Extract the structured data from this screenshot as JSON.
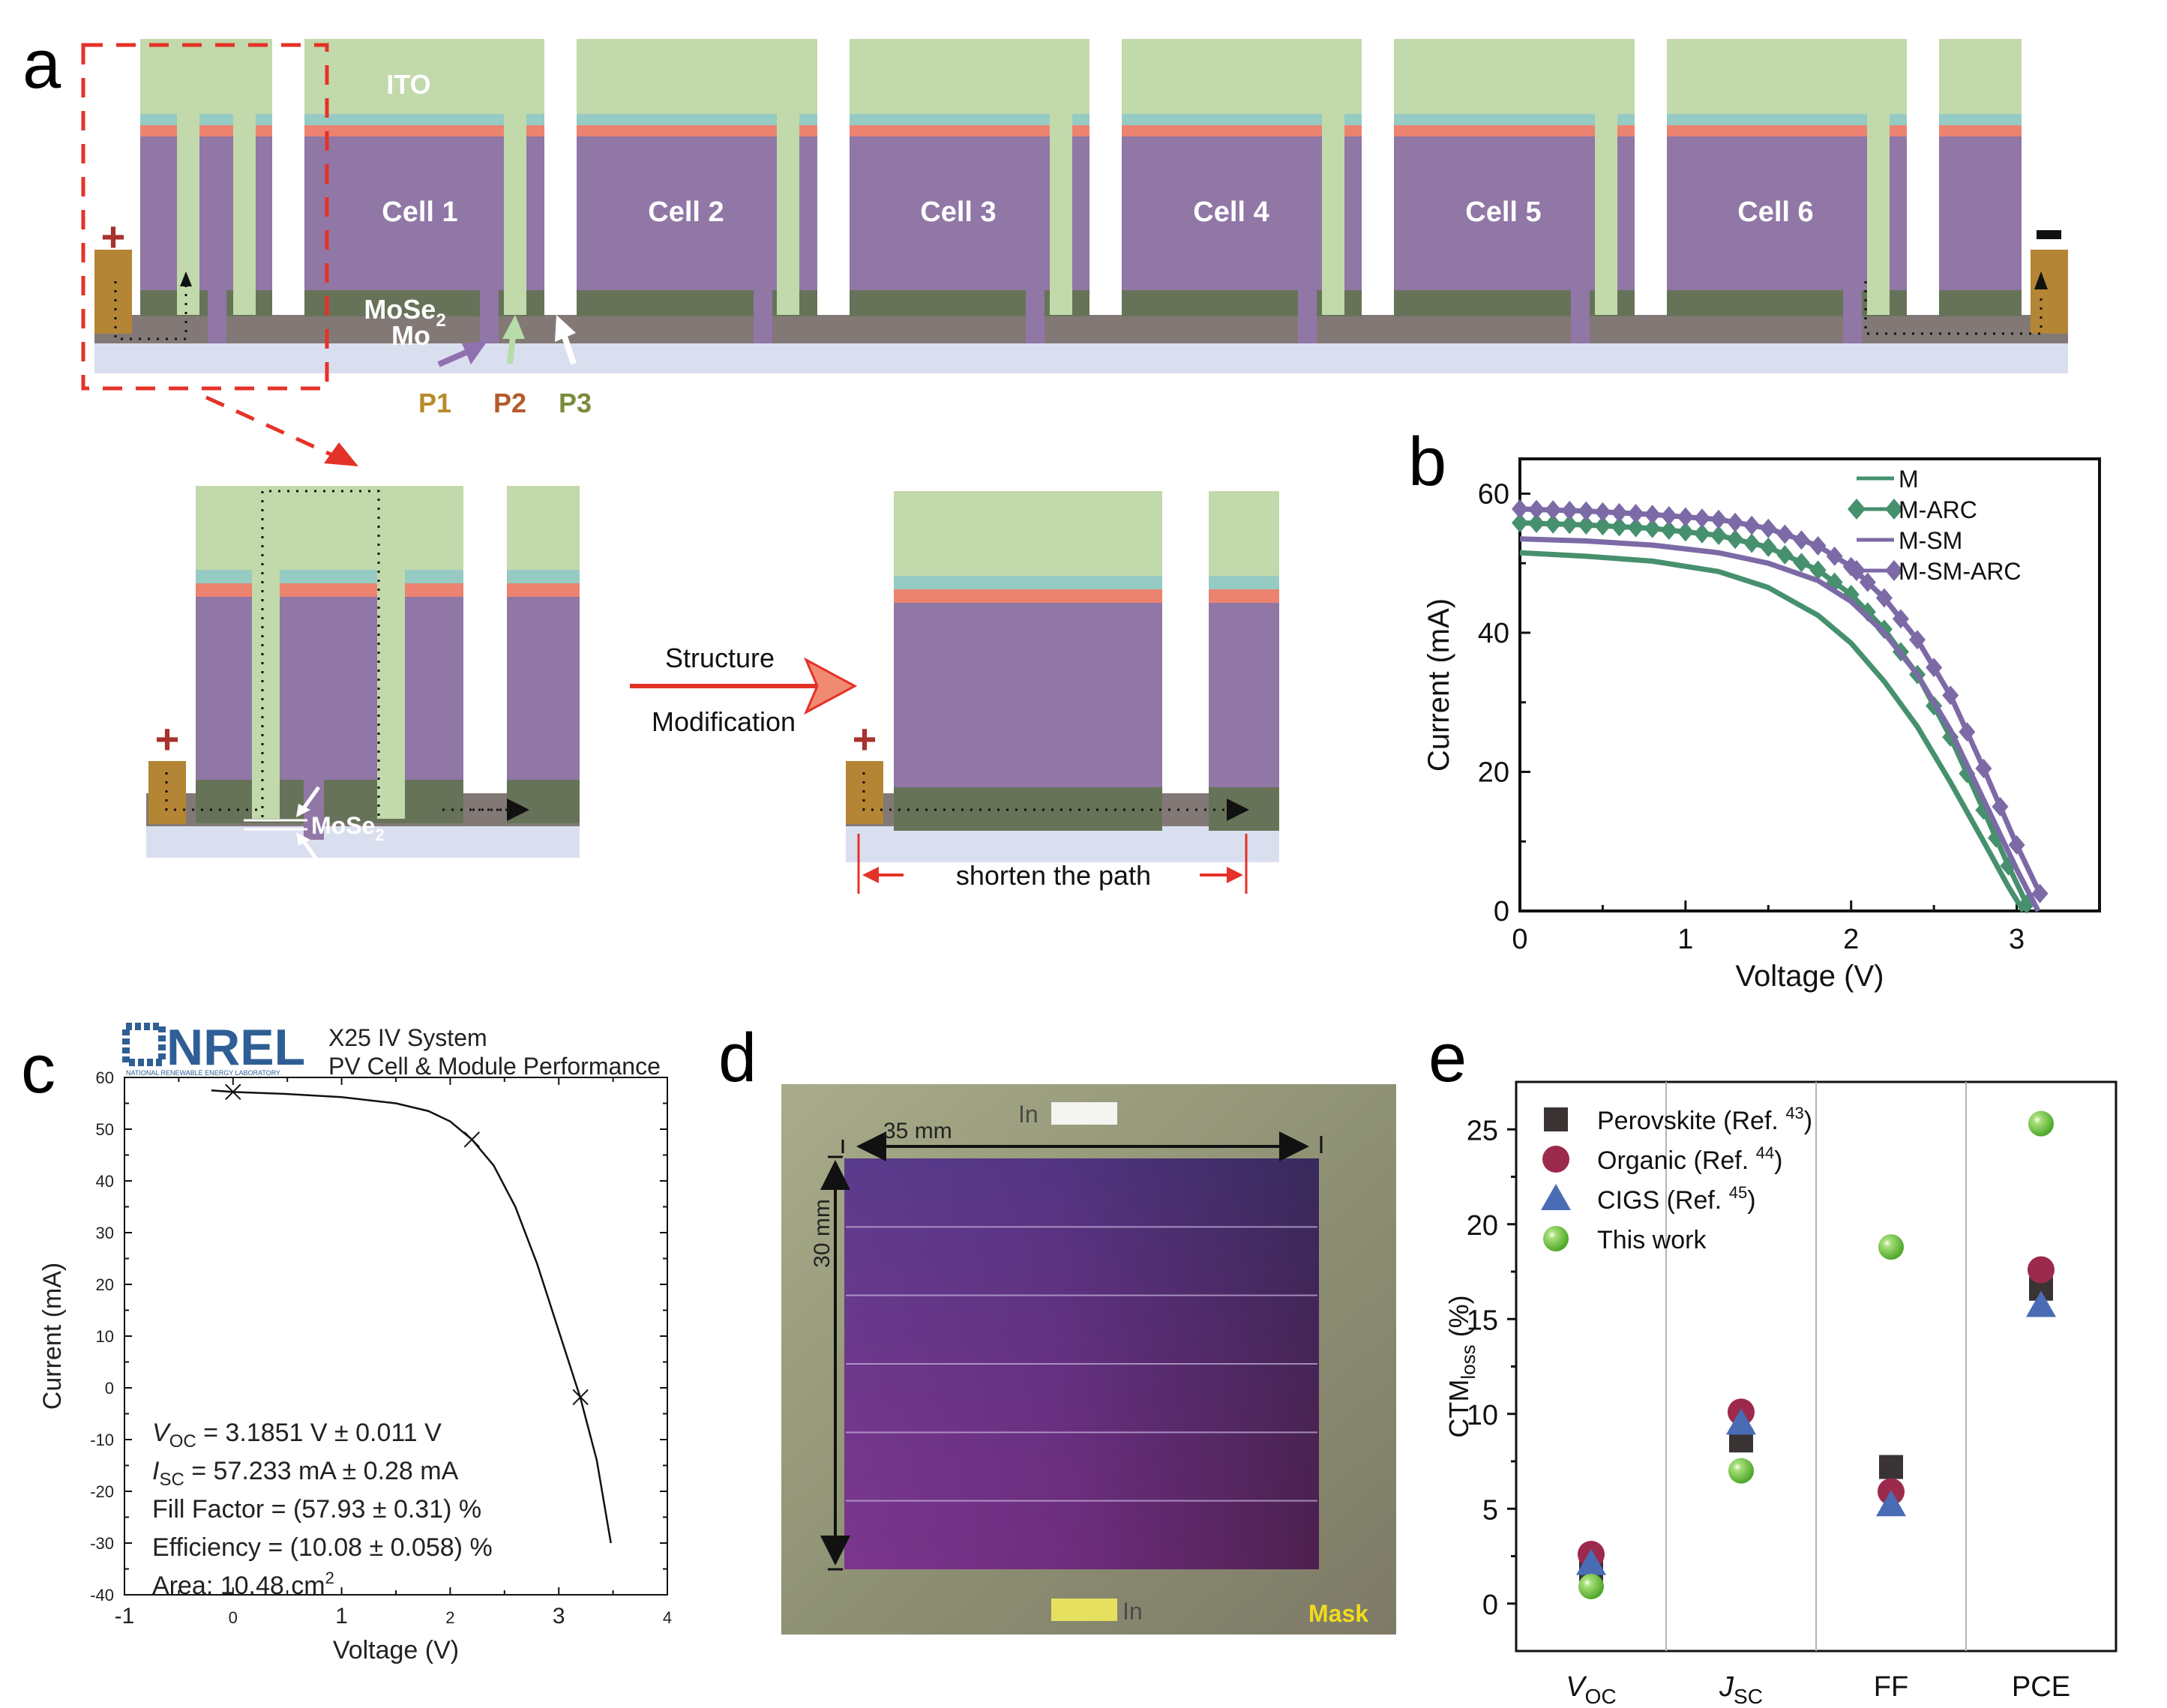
{
  "panel_labels": {
    "a": "a",
    "b": "b",
    "c": "c",
    "d": "d",
    "e": "e"
  },
  "colors": {
    "ito": "#c2d9ab",
    "buffer_teal": "#96cbc3",
    "cds_red": "#ec8370",
    "absorber_purple": "#9077a6",
    "mose2_green": "#677358",
    "mo_gray": "#827976",
    "substrate": "#dadff0",
    "contact_gold": "#b48534",
    "plus_red": "#a8322c",
    "dash_red": "#e53228",
    "p1_label": "#b88b2b",
    "p2_label": "#b45a2c",
    "p3_label": "#7a8c3a",
    "series_green": "#46906e",
    "series_purple": "#7c6aa6",
    "nrel_blue": "#2e5e95",
    "e_perovskite": "#3a3334",
    "e_organic": "#9c2a4c",
    "e_cigs": "#4a6cb4",
    "e_thiswork": "#6cc23a",
    "mask_yellow": "#f2dc1c"
  },
  "panel_a": {
    "top_schematic": {
      "ito_label": "ITO",
      "cells": [
        "Cell 1",
        "Cell 2",
        "Cell 3",
        "Cell 4",
        "Cell 5",
        "Cell 6"
      ],
      "mose2_label": "MoSe",
      "mose2_sub": "2",
      "mo_label": "Mo",
      "terminal_plus": "+",
      "terminal_minus": "−",
      "scribe_labels": [
        "P1",
        "P2",
        "P3"
      ]
    },
    "arrow_top_label": "Structure",
    "arrow_bottom_label": "Modification",
    "detail_mose2_label": "MoSe",
    "detail_mose2_sub": "2",
    "shorten_label": "shorten the path"
  },
  "chart_data": [
    {
      "id": "b",
      "type": "line",
      "title": "",
      "xlabel": "Voltage (V)",
      "ylabel": "Current (mA)",
      "xlim": [
        0,
        3.5
      ],
      "ylim": [
        0,
        65
      ],
      "xticks": [
        0,
        1,
        2,
        3
      ],
      "yticks": [
        0,
        20,
        40,
        60
      ],
      "legend_position": "top-right",
      "series": [
        {
          "name": "M",
          "style": "line",
          "color_key": "series_green",
          "x": [
            0,
            0.4,
            0.8,
            1.2,
            1.5,
            1.8,
            2.0,
            2.2,
            2.4,
            2.6,
            2.8,
            2.95,
            3.04
          ],
          "y": [
            51.5,
            51.0,
            50.3,
            48.8,
            46.5,
            42.5,
            38.5,
            33.0,
            26.5,
            18.5,
            10.0,
            3.5,
            0
          ]
        },
        {
          "name": "M-ARC",
          "style": "line-diamond",
          "color_key": "series_green",
          "x": [
            0,
            0.4,
            0.8,
            1.2,
            1.5,
            1.8,
            2.0,
            2.2,
            2.4,
            2.6,
            2.8,
            2.95,
            3.06
          ],
          "y": [
            55.8,
            55.5,
            55.0,
            54.0,
            52.3,
            49.0,
            45.5,
            40.5,
            34.0,
            25.0,
            14.5,
            6.5,
            1.0
          ]
        },
        {
          "name": "M-SM",
          "style": "line",
          "color_key": "series_purple",
          "x": [
            0,
            0.4,
            0.8,
            1.2,
            1.5,
            1.8,
            2.0,
            2.2,
            2.4,
            2.6,
            2.8,
            3.0,
            3.13
          ],
          "y": [
            53.5,
            53.2,
            52.6,
            51.5,
            50.0,
            47.5,
            44.5,
            40.0,
            34.0,
            26.0,
            16.0,
            6.0,
            0
          ]
        },
        {
          "name": "M-SM-ARC",
          "style": "line-diamond",
          "color_key": "series_purple",
          "x": [
            0,
            0.4,
            0.8,
            1.2,
            1.5,
            1.8,
            2.0,
            2.2,
            2.4,
            2.6,
            2.8,
            3.0,
            3.14
          ],
          "y": [
            57.8,
            57.5,
            57.0,
            56.3,
            55.0,
            52.5,
            49.5,
            45.0,
            39.0,
            31.0,
            20.5,
            9.5,
            2.5
          ]
        }
      ]
    },
    {
      "id": "c",
      "type": "line",
      "header_logo": "NREL",
      "header_logo_subtitle": "NATIONAL RENEWABLE ENERGY LABORATORY",
      "header_line1": "X25 IV System",
      "header_line2": "PV Cell & Module Performance",
      "xlabel": "Voltage (V)",
      "ylabel": "Current (mA)",
      "xlim": [
        -1,
        4
      ],
      "ylim": [
        -40,
        60
      ],
      "xticks": [
        -1,
        0,
        1,
        2,
        3,
        4
      ],
      "yticks": [
        -40,
        -30,
        -20,
        -10,
        0,
        10,
        20,
        30,
        40,
        50,
        60
      ],
      "series": [
        {
          "name": "IV",
          "x": [
            -0.2,
            0,
            0.5,
            1.0,
            1.5,
            1.8,
            2.0,
            2.2,
            2.4,
            2.6,
            2.8,
            3.0,
            3.2,
            3.35,
            3.48
          ],
          "y": [
            57.5,
            57.2,
            56.8,
            56.2,
            55.0,
            53.5,
            51.5,
            48.0,
            43.0,
            35.0,
            24.0,
            11.0,
            -2.0,
            -14.0,
            -30.0
          ]
        }
      ],
      "markers": [
        {
          "x": 0,
          "y": 57.2
        },
        {
          "x": 2.2,
          "y": 48.0
        },
        {
          "x": 3.2,
          "y": -1.8
        }
      ],
      "annotations": [
        {
          "sym": "V",
          "sub": "OC",
          "text": " = 3.1851 V ± 0.011 V"
        },
        {
          "sym": "I",
          "sub": "SC",
          "text": " = 57.233 mA ± 0.28 mA"
        },
        {
          "sym": "",
          "sub": "",
          "text": "Fill Factor = (57.93 ± 0.31) %"
        },
        {
          "sym": "",
          "sub": "",
          "text": "Efficiency = (10.08 ± 0.058) %"
        },
        {
          "sym": "",
          "sub": "",
          "text": "Area: 10.48 cm",
          "sup": "2"
        }
      ]
    },
    {
      "id": "e",
      "type": "scatter",
      "xlabel": "",
      "ylabel": "CTM",
      "ylabel_sub": "loss",
      "ylabel_suffix": " (%)",
      "ylim": [
        -2.5,
        27.5
      ],
      "yticks": [
        0,
        5,
        10,
        15,
        20,
        25
      ],
      "categories": [
        {
          "sym": "V",
          "sub": "OC"
        },
        {
          "sym": "J",
          "sub": "SC"
        },
        {
          "sym": "FF",
          "sub": ""
        },
        {
          "sym": "PCE",
          "sub": ""
        }
      ],
      "legend_position": "top-left",
      "series": [
        {
          "name": "Perovskite (Ref. ",
          "ref": "43",
          "marker": "square",
          "color_key": "e_perovskite",
          "values": [
            1.8,
            8.6,
            7.2,
            16.6
          ]
        },
        {
          "name": "Organic (Ref. ",
          "ref": "44",
          "marker": "circle",
          "color_key": "e_organic",
          "values": [
            2.6,
            10.1,
            5.9,
            17.6
          ]
        },
        {
          "name": "CIGS (Ref. ",
          "ref": "45",
          "marker": "triangle",
          "color_key": "e_cigs",
          "values": [
            2.1,
            9.5,
            5.2,
            15.7
          ]
        },
        {
          "name": "This work",
          "ref": "",
          "marker": "sphere",
          "color_key": "e_thiswork",
          "values": [
            0.9,
            7.0,
            18.8,
            25.3
          ]
        }
      ]
    }
  ],
  "panel_d": {
    "width_label": "35 mm",
    "height_label": "30 mm",
    "in_top": "In",
    "in_bottom": "In",
    "mask_label": "Mask",
    "scribe_lines": 5
  }
}
